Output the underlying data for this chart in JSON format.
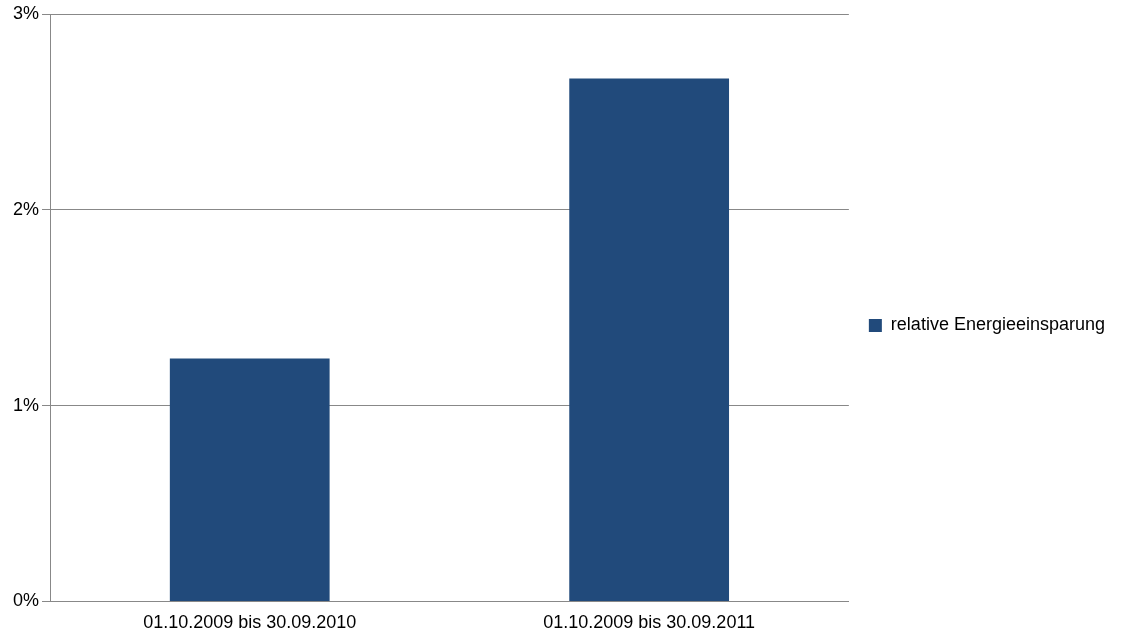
{
  "chart_data": {
    "type": "bar",
    "categories": [
      "01.10.2009 bis 30.09.2010",
      "01.10.2009 bis 30.09.2011"
    ],
    "series": [
      {
        "name": "relative Energieeinsparung",
        "color": "#214a7b",
        "values": [
          1.24,
          2.67
        ]
      }
    ],
    "ylim": [
      0,
      3
    ],
    "yticks": [
      {
        "value": 0,
        "label": "0%"
      },
      {
        "value": 1,
        "label": "1%"
      },
      {
        "value": 2,
        "label": "2%"
      },
      {
        "value": 3,
        "label": "3%"
      }
    ],
    "grid": "y",
    "legend": "right"
  }
}
